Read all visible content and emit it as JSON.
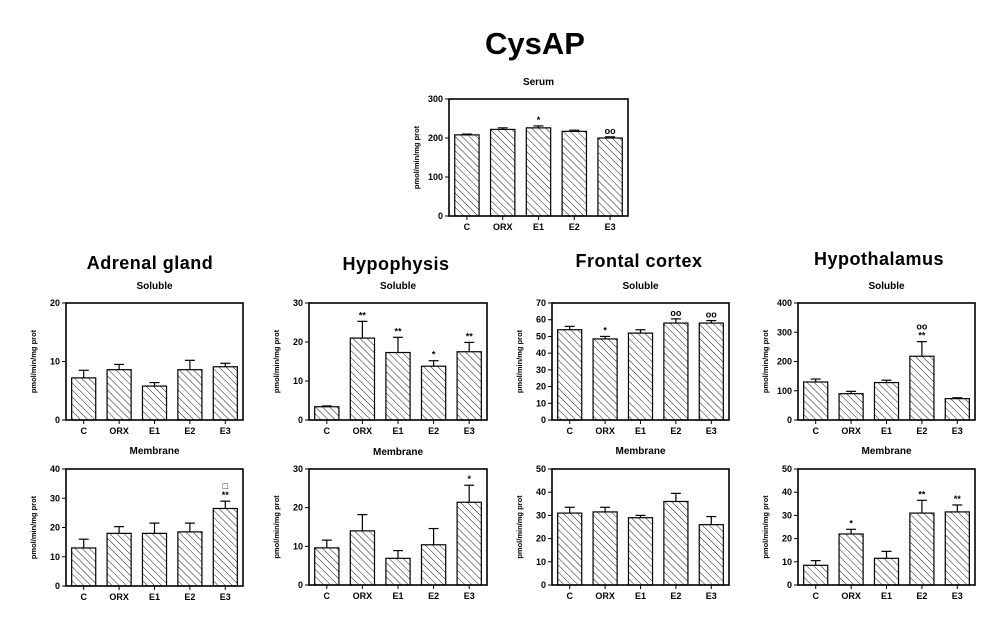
{
  "figure": {
    "title": "CysAP",
    "groups": [
      "Adrenal gland",
      "Hypophysis",
      "Frontal cortex",
      "Hypothalamus"
    ]
  },
  "chart_data": [
    {
      "type": "bar",
      "id": "serum",
      "group": "",
      "title": "Serum",
      "ylabel": "pmol/min/mg prot",
      "categories": [
        "C",
        "ORX",
        "E1",
        "E2",
        "E3"
      ],
      "values": [
        208,
        222,
        226,
        217,
        200
      ],
      "errors": [
        2,
        4,
        5,
        3,
        3
      ],
      "significance": [
        "",
        "",
        "*",
        "",
        "oo"
      ],
      "ylim": [
        0,
        300
      ],
      "yticks": [
        0,
        100,
        200,
        300
      ]
    },
    {
      "type": "bar",
      "id": "adrenal-soluble",
      "group": "Adrenal gland",
      "title": "Soluble",
      "ylabel": "pmol/min/mg prot",
      "categories": [
        "C",
        "ORX",
        "E1",
        "E2",
        "E3"
      ],
      "values": [
        7.2,
        8.6,
        5.8,
        8.6,
        9.1
      ],
      "errors": [
        1.3,
        0.9,
        0.6,
        1.6,
        0.6
      ],
      "significance": [
        "",
        "",
        "",
        "",
        ""
      ],
      "ylim": [
        0,
        20
      ],
      "yticks": [
        0,
        10,
        20
      ]
    },
    {
      "type": "bar",
      "id": "adrenal-membrane",
      "group": "Adrenal gland",
      "title": "Membrane",
      "ylabel": "pmol/min/mg prot",
      "categories": [
        "C",
        "ORX",
        "E1",
        "E2",
        "E3"
      ],
      "values": [
        13,
        18,
        18,
        18.5,
        26.5
      ],
      "errors": [
        3,
        2.3,
        3.5,
        3,
        2.5
      ],
      "significance": [
        "",
        "",
        "",
        "",
        "**,□"
      ],
      "ylim": [
        0,
        40
      ],
      "yticks": [
        0,
        10,
        20,
        30,
        40
      ]
    },
    {
      "type": "bar",
      "id": "hypophysis-soluble",
      "group": "Hypophysis",
      "title": "Soluble",
      "ylabel": "pmol/min/mg prot",
      "categories": [
        "C",
        "ORX",
        "E1",
        "E2",
        "E3"
      ],
      "values": [
        3.4,
        21,
        17.3,
        13.8,
        17.5
      ],
      "errors": [
        0.2,
        4.3,
        3.9,
        1.4,
        2.4
      ],
      "significance": [
        "",
        "**",
        "**",
        "*",
        "**"
      ],
      "ylim": [
        0,
        30
      ],
      "yticks": [
        0,
        10,
        20,
        30
      ]
    },
    {
      "type": "bar",
      "id": "hypophysis-membrane",
      "group": "Hypophysis",
      "title": "Membrane",
      "ylabel": "pmol/min/mg prot",
      "categories": [
        "C",
        "ORX",
        "E1",
        "E2",
        "E3"
      ],
      "values": [
        9.6,
        14,
        6.9,
        10.4,
        21.4
      ],
      "errors": [
        2,
        4.2,
        2,
        4.2,
        4.4
      ],
      "significance": [
        "",
        "",
        "",
        "",
        "*"
      ],
      "ylim": [
        0,
        30
      ],
      "yticks": [
        0,
        10,
        20,
        30
      ]
    },
    {
      "type": "bar",
      "id": "cortex-soluble",
      "group": "Frontal cortex",
      "title": "Soluble",
      "ylabel": "pmol/min/mg prot",
      "categories": [
        "C",
        "ORX",
        "E1",
        "E2",
        "E3"
      ],
      "values": [
        54,
        48.5,
        52,
        58,
        58
      ],
      "errors": [
        2,
        1.5,
        2,
        2.5,
        1.5
      ],
      "significance": [
        "",
        "*",
        "",
        "oo",
        "oo"
      ],
      "ylim": [
        0,
        70
      ],
      "yticks": [
        0,
        10,
        20,
        30,
        40,
        50,
        60,
        70
      ]
    },
    {
      "type": "bar",
      "id": "cortex-membrane",
      "group": "Frontal cortex",
      "title": "Membrane",
      "ylabel": "pmol/min/mg prot",
      "categories": [
        "C",
        "ORX",
        "E1",
        "E2",
        "E3"
      ],
      "values": [
        31,
        31.5,
        29,
        36,
        26
      ],
      "errors": [
        2.5,
        2,
        1,
        3.5,
        3.5
      ],
      "significance": [
        "",
        "",
        "",
        "",
        ""
      ],
      "ylim": [
        0,
        50
      ],
      "yticks": [
        0,
        10,
        20,
        30,
        40,
        50
      ]
    },
    {
      "type": "bar",
      "id": "hypothalamus-soluble",
      "group": "Hypothalamus",
      "title": "Soluble",
      "ylabel": "pmol/min/mg prot",
      "categories": [
        "C",
        "ORX",
        "E1",
        "E2",
        "E3"
      ],
      "values": [
        130,
        90,
        128,
        218,
        73
      ],
      "errors": [
        10,
        8,
        8,
        50,
        3
      ],
      "significance": [
        "",
        "",
        "",
        "**,oo",
        ""
      ],
      "ylim": [
        0,
        400
      ],
      "yticks": [
        0,
        100,
        200,
        300,
        400
      ]
    },
    {
      "type": "bar",
      "id": "hypothalamus-membrane",
      "group": "Hypothalamus",
      "title": "Membrane",
      "ylabel": "pmol/min/mg prot",
      "categories": [
        "C",
        "ORX",
        "E1",
        "E2",
        "E3"
      ],
      "values": [
        8.5,
        22,
        11.5,
        31,
        31.5
      ],
      "errors": [
        2,
        2,
        3,
        5.5,
        3
      ],
      "significance": [
        "",
        "*",
        "",
        "**",
        "**"
      ],
      "ylim": [
        0,
        50
      ],
      "yticks": [
        0,
        10,
        20,
        30,
        40,
        50
      ]
    }
  ]
}
